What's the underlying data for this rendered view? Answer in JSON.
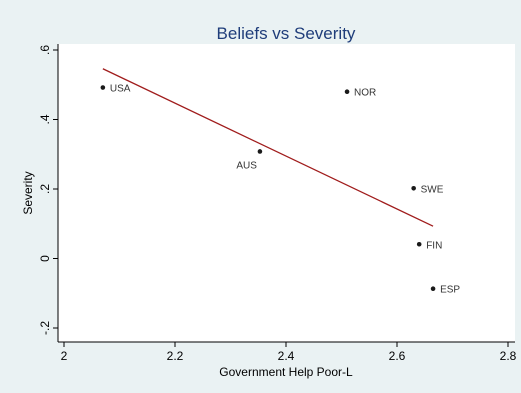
{
  "chart_data": {
    "type": "scatter",
    "title": "Beliefs vs Severity",
    "xlabel": "Government Help Poor-L",
    "ylabel": "Severity",
    "xlim": [
      2.0,
      2.8
    ],
    "ylim": [
      -0.2,
      0.6
    ],
    "x_ticks": [
      2.0,
      2.2,
      2.4,
      2.6,
      2.8
    ],
    "x_tick_labels": [
      "2",
      "2.2",
      "2.4",
      "2.6",
      "2.8"
    ],
    "y_ticks": [
      -0.2,
      0.0,
      0.2,
      0.4,
      0.6
    ],
    "y_tick_labels": [
      "-.2",
      "0",
      ".2",
      ".4",
      ".6"
    ],
    "points": [
      {
        "label": "USA",
        "x": 2.07,
        "y": 0.492
      },
      {
        "label": "AUS",
        "x": 2.353,
        "y": 0.308
      },
      {
        "label": "NOR",
        "x": 2.51,
        "y": 0.48
      },
      {
        "label": "SWE",
        "x": 2.63,
        "y": 0.202
      },
      {
        "label": "FIN",
        "x": 2.64,
        "y": 0.041
      },
      {
        "label": "ESP",
        "x": 2.665,
        "y": -0.087
      }
    ],
    "fit_line": {
      "x": [
        2.07,
        2.665
      ],
      "y": [
        0.546,
        0.093
      ]
    },
    "grid": false,
    "legend": "none",
    "colors": {
      "background": "#eaf2f3",
      "plot_area": "#ffffff",
      "title": "#1f3d7a",
      "point": "#1a1a1a",
      "fit_line": "#a01c1c",
      "axis": "#000000"
    }
  }
}
